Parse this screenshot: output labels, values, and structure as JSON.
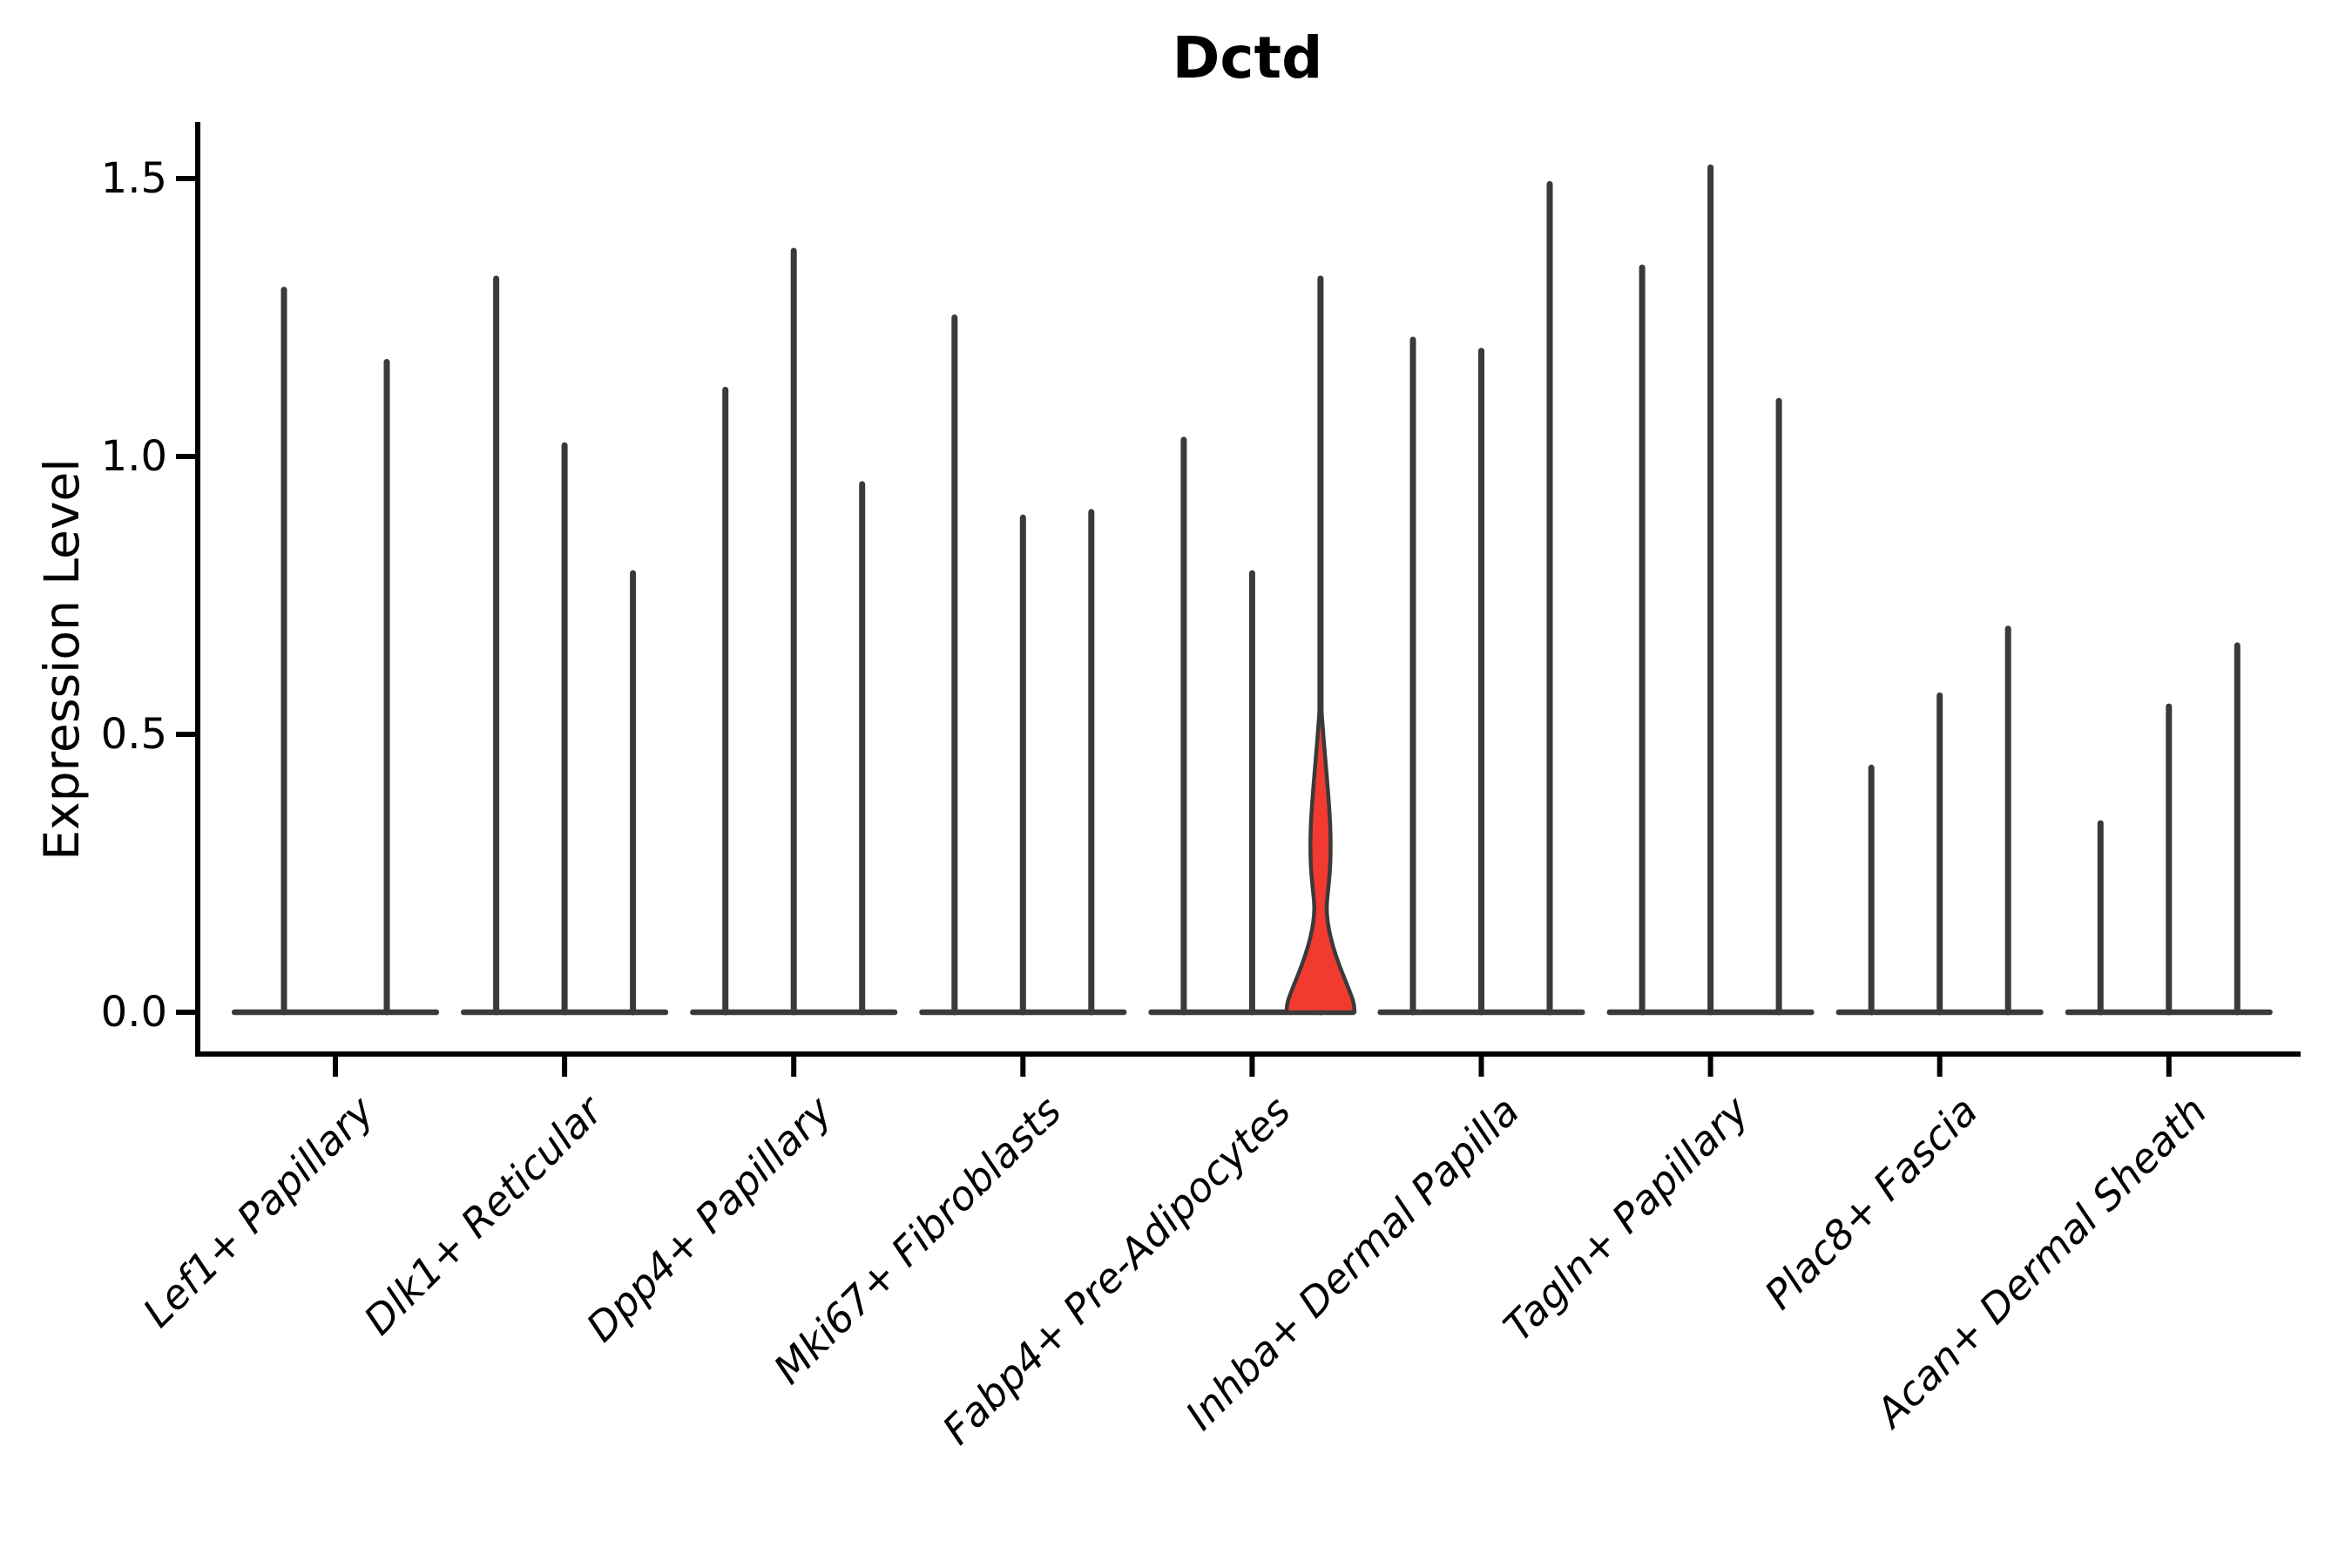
{
  "chart_data": {
    "type": "violin",
    "title": "Dctd",
    "ylabel": "Expression Level",
    "xlabel": "",
    "ylim": [
      0,
      1.6
    ],
    "yticks": [
      0.0,
      0.5,
      1.0,
      1.5
    ],
    "ytick_labels": [
      "0.0",
      "0.5",
      "1.0",
      "1.5"
    ],
    "grid": false,
    "legend": null,
    "categories": [
      "Lef1+ Papillary",
      "Dlk1+ Reticular",
      "Dpp4+ Papillary",
      "Mki67+ Fibroblasts",
      "Fabp4+ Pre-Adipocytes",
      "Inhba+ Dermal Papilla",
      "Tagln+ Papillary",
      "Plac8+ Fascia",
      "Acan+ Dermal Sheath"
    ],
    "groups": [
      {
        "category": "Lef1+ Papillary",
        "violins": [
          {
            "max": 1.3
          },
          {
            "max": 1.17
          }
        ]
      },
      {
        "category": "Dlk1+ Reticular",
        "violins": [
          {
            "max": 1.32
          },
          {
            "max": 1.02
          },
          {
            "max": 0.79
          }
        ]
      },
      {
        "category": "Dpp4+ Papillary",
        "violins": [
          {
            "max": 1.12
          },
          {
            "max": 1.37
          },
          {
            "max": 0.95
          }
        ]
      },
      {
        "category": "Mki67+ Fibroblasts",
        "violins": [
          {
            "max": 1.25
          },
          {
            "max": 0.89
          },
          {
            "max": 0.9
          }
        ]
      },
      {
        "category": "Fabp4+ Pre-Adipocytes",
        "violins": [
          {
            "max": 1.03
          },
          {
            "max": 0.79
          },
          {
            "max": 1.32,
            "highlighted": true,
            "fill": "#f23a30",
            "belly_value": 0.34,
            "waist_value": 0.2
          }
        ]
      },
      {
        "category": "Inhba+ Dermal Papilla",
        "violins": [
          {
            "max": 1.21
          },
          {
            "max": 1.19
          },
          {
            "max": 1.49
          }
        ]
      },
      {
        "category": "Tagln+ Papillary",
        "violins": [
          {
            "max": 1.34
          },
          {
            "max": 1.52
          },
          {
            "max": 1.1
          }
        ]
      },
      {
        "category": "Plac8+ Fascia",
        "violins": [
          {
            "max": 0.44
          },
          {
            "max": 0.57
          },
          {
            "max": 0.69
          }
        ]
      },
      {
        "category": "Acan+ Dermal Sheath",
        "violins": [
          {
            "max": 0.34
          },
          {
            "max": 0.55
          },
          {
            "max": 0.66
          }
        ]
      }
    ],
    "colors": {
      "violin_stroke": "#3a3a3a",
      "highlight_fill": "#f23a30",
      "axis": "#000000",
      "background": "#ffffff"
    }
  }
}
